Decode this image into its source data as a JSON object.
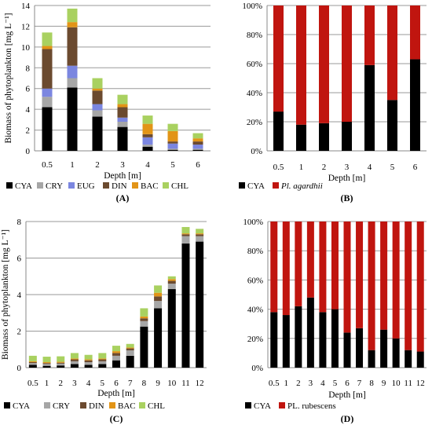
{
  "colors": {
    "CYA": "#000000",
    "CRY": "#a6a6a6",
    "EUG": "#7b86e0",
    "DIN": "#6b4a2f",
    "BAC": "#e29417",
    "CHL": "#a9d160",
    "SPECIES": "#c0150f",
    "SPECIES_DARK": "#5a2a1a"
  },
  "chart_data": [
    {
      "id": "A",
      "panel_label": "(A)",
      "type": "bar",
      "stacked": true,
      "ylabel": "Biomass of phytoplankton [mg L⁻¹]",
      "xlabel": "Depth [m]",
      "ylim": [
        0,
        14
      ],
      "yticks": [
        "0",
        "2",
        "4",
        "6",
        "8",
        "10",
        "12",
        "14"
      ],
      "ytick_values": [
        0,
        2,
        4,
        6,
        8,
        10,
        12,
        14
      ],
      "grid": true,
      "legend": "bottom",
      "categories": [
        "0.5",
        "1",
        "2",
        "3",
        "4",
        "5",
        "6"
      ],
      "series": [
        {
          "name": "CYA",
          "key": "CYA",
          "values": [
            4.2,
            6.1,
            3.3,
            2.3,
            0.4,
            0.1,
            0.1
          ]
        },
        {
          "name": "CRY",
          "key": "CRY",
          "values": [
            1.0,
            0.9,
            0.6,
            0.5,
            0.2,
            0.1,
            0.1
          ]
        },
        {
          "name": "EUG",
          "key": "EUG",
          "values": [
            0.8,
            1.2,
            0.6,
            0.4,
            0.7,
            0.5,
            0.4
          ]
        },
        {
          "name": "DIN",
          "key": "DIN",
          "values": [
            3.8,
            3.7,
            1.3,
            1.0,
            0.3,
            0.2,
            0.3
          ]
        },
        {
          "name": "BAC",
          "key": "BAC",
          "values": [
            0.3,
            0.5,
            0.2,
            0.3,
            1.0,
            1.0,
            0.3
          ]
        },
        {
          "name": "CHL",
          "key": "CHL",
          "values": [
            1.3,
            1.3,
            1.0,
            0.9,
            0.8,
            0.7,
            0.5
          ]
        }
      ]
    },
    {
      "id": "B",
      "panel_label": "(B)",
      "type": "bar",
      "stacked": true,
      "percent": true,
      "ylabel": "",
      "xlabel": "Depth [m]",
      "ylim": [
        0,
        100
      ],
      "yticks": [
        "0%",
        "20%",
        "40%",
        "60%",
        "80%",
        "100%"
      ],
      "ytick_values": [
        0,
        20,
        40,
        60,
        80,
        100
      ],
      "grid": true,
      "legend": "bottom",
      "categories": [
        "0.5",
        "1",
        "2",
        "3",
        "4",
        "5",
        "6"
      ],
      "series": [
        {
          "name": "CYA",
          "key": "CYA",
          "values": [
            27,
            18,
            19,
            20,
            59,
            35,
            63
          ]
        },
        {
          "name": "Pl. agardhii",
          "key": "SPECIES",
          "values": [
            73,
            82,
            81,
            80,
            41,
            65,
            37
          ]
        }
      ]
    },
    {
      "id": "C",
      "panel_label": "(C)",
      "type": "bar",
      "stacked": true,
      "ylabel": "Biomass of phytoplankton [mg L⁻¹]",
      "xlabel": "Depth [m]",
      "ylim": [
        0,
        8
      ],
      "yticks": [
        "0",
        "2",
        "4",
        "6",
        "8"
      ],
      "ytick_values": [
        0,
        2,
        4,
        6,
        8
      ],
      "grid": true,
      "legend": "bottom",
      "categories": [
        "0.5",
        "1",
        "2",
        "3",
        "4",
        "5",
        "6",
        "7",
        "8",
        "9",
        "10",
        "11",
        "12"
      ],
      "series": [
        {
          "name": "CYA",
          "key": "CYA",
          "values": [
            0.15,
            0.1,
            0.12,
            0.2,
            0.15,
            0.2,
            0.4,
            0.65,
            2.25,
            3.25,
            4.3,
            6.8,
            6.9
          ]
        },
        {
          "name": "CRY",
          "key": "CRY",
          "values": [
            0.1,
            0.1,
            0.1,
            0.15,
            0.15,
            0.15,
            0.25,
            0.3,
            0.3,
            0.4,
            0.3,
            0.4,
            0.3
          ]
        },
        {
          "name": "DIN",
          "key": "DIN",
          "values": [
            0.05,
            0.05,
            0.05,
            0.1,
            0.1,
            0.1,
            0.15,
            0.1,
            0.15,
            0.25,
            0.15,
            0.1,
            0.1
          ]
        },
        {
          "name": "BAC",
          "key": "BAC",
          "values": [
            0.05,
            0.05,
            0.05,
            0.05,
            0.05,
            0.05,
            0.1,
            0.05,
            0.1,
            0.2,
            0.1,
            0.05,
            0.05
          ]
        },
        {
          "name": "CHL",
          "key": "CHL",
          "values": [
            0.3,
            0.3,
            0.3,
            0.3,
            0.25,
            0.3,
            0.3,
            0.2,
            0.45,
            0.4,
            0.15,
            0.35,
            0.25
          ]
        }
      ]
    },
    {
      "id": "D",
      "panel_label": "(D)",
      "type": "bar",
      "stacked": true,
      "percent": true,
      "ylabel": "",
      "xlabel": "Depth [m]",
      "ylim": [
        0,
        100
      ],
      "yticks": [
        "0%",
        "20%",
        "40%",
        "60%",
        "80%",
        "100%"
      ],
      "ytick_values": [
        0,
        20,
        40,
        60,
        80,
        100
      ],
      "grid": true,
      "legend": "bottom",
      "categories": [
        "0.5",
        "1",
        "2",
        "3",
        "4",
        "5",
        "6",
        "7",
        "8",
        "9",
        "10",
        "11",
        "12"
      ],
      "series": [
        {
          "name": "CYA",
          "key": "CYA",
          "values": [
            38,
            36,
            42,
            48,
            38,
            40,
            24,
            27,
            12,
            26,
            20,
            12,
            11
          ]
        },
        {
          "name": "PL. rubescens",
          "key": "SPECIES",
          "values": [
            62,
            64,
            58,
            52,
            62,
            60,
            76,
            73,
            88,
            74,
            80,
            88,
            89
          ]
        }
      ]
    }
  ]
}
